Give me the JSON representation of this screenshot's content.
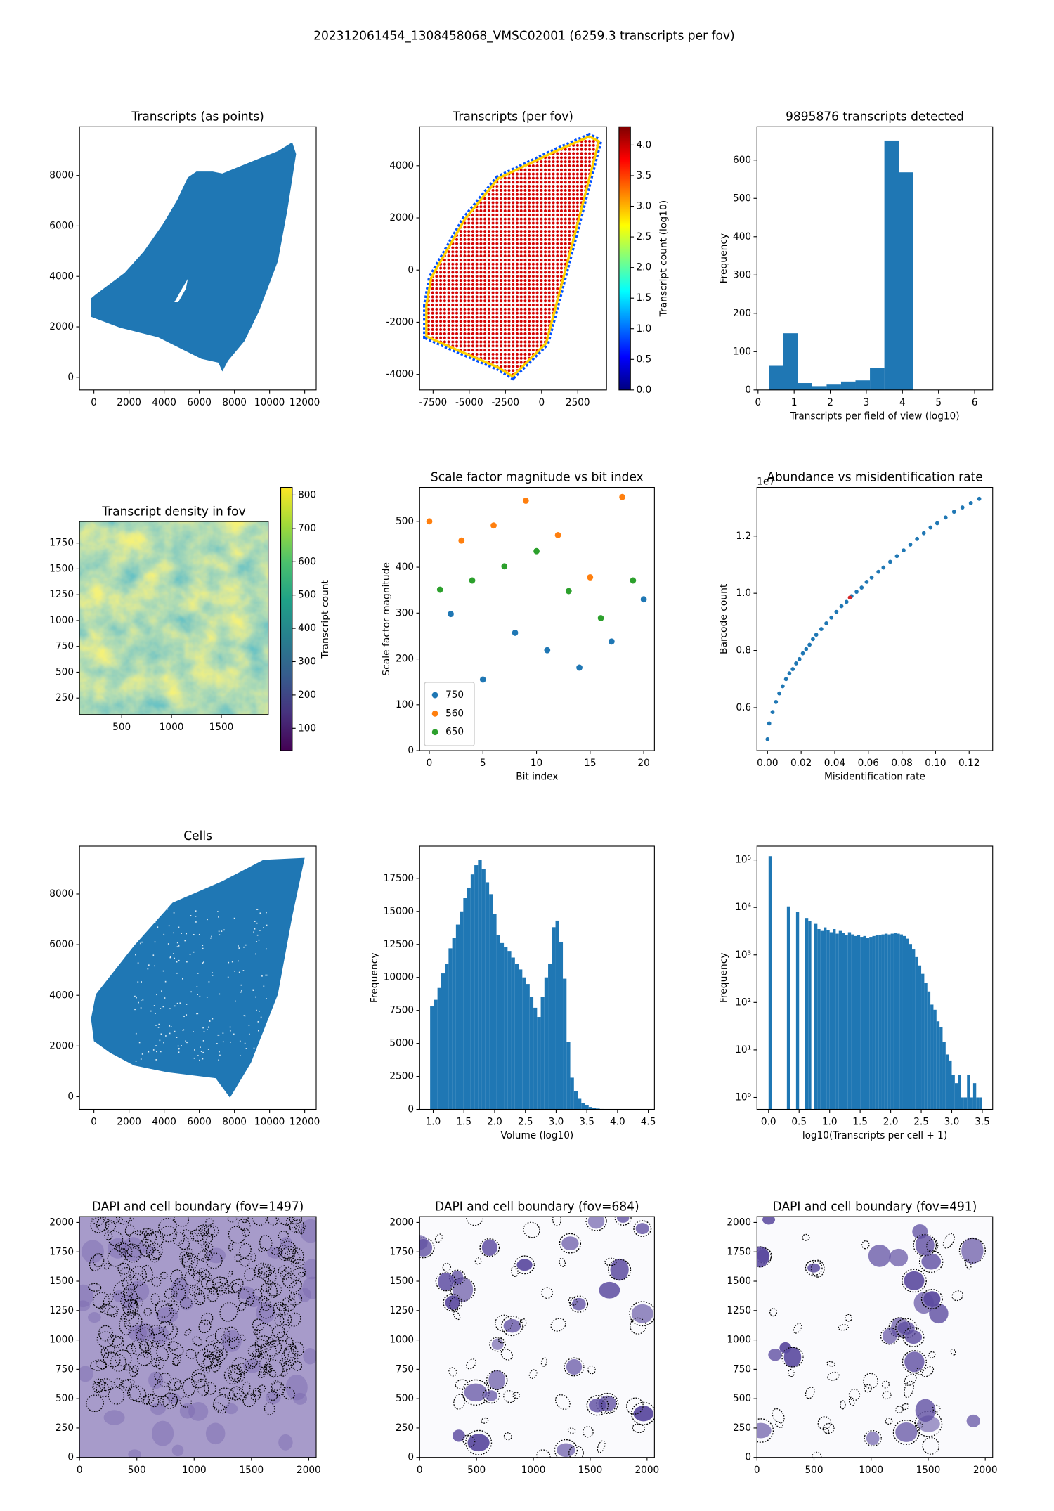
{
  "title": "202312061454_1308458068_VMSC02001 (6259.3 transcripts per fov)",
  "chart_data": [
    {
      "type": "image",
      "title": "Transcripts (as points)",
      "color": "#1f77b4",
      "xlim": [
        -818,
        12655
      ],
      "xticks": [
        0,
        2000,
        4000,
        6000,
        8000,
        10000,
        12000
      ],
      "ylim": [
        -502,
        9932
      ],
      "yticks": [
        0,
        2000,
        4000,
        6000,
        8000
      ]
    },
    {
      "type": "image",
      "title": "Transcripts (per fov)",
      "xlim": [
        -8427,
        4487
      ],
      "xticks": [
        -7500,
        -5000,
        -2500,
        0,
        2500
      ],
      "ylim": [
        -4598,
        5495
      ],
      "yticks": [
        -4000,
        -2000,
        0,
        2000,
        4000
      ],
      "colorbar": {
        "label": "Transcript count (log10)",
        "colormap": "jet",
        "lim": [
          0,
          4.3
        ],
        "ticks": [
          {
            "value": 0,
            "label": "0.0"
          },
          0.5,
          {
            "value": 1,
            "label": "1.0"
          },
          1.5,
          {
            "value": 2,
            "label": "2.0"
          },
          2.5,
          {
            "value": 3,
            "label": "3.0"
          },
          3.5,
          {
            "value": 4,
            "label": "4.0"
          }
        ]
      }
    },
    {
      "type": "hist",
      "title": "9895876 transcripts detected",
      "x_label": "Transcripts per field of view (log10)",
      "y_label": "Frequency",
      "color": "#1f77b4",
      "bins": [
        0.3,
        0.7,
        1.1,
        1.5,
        1.9,
        2.3,
        2.7,
        3.1,
        3.5,
        3.9,
        4.3
      ],
      "counts": [
        63,
        148,
        18,
        10,
        14,
        22,
        25,
        58,
        651,
        568
      ],
      "xlim": [
        -0.03,
        6.5
      ],
      "xticks": [
        0,
        1,
        2,
        3,
        4,
        5,
        6
      ],
      "ylim": [
        0,
        687
      ],
      "yticks": [
        0,
        100,
        200,
        300,
        400,
        500,
        600
      ]
    },
    {
      "type": "image",
      "title": "Transcript density in fov",
      "xlim": [
        77,
        1971
      ],
      "xticks": [
        500,
        1000,
        1500
      ],
      "ylim": [
        90,
        1958
      ],
      "yticks": [
        250,
        500,
        750,
        1000,
        1250,
        1500,
        1750
      ],
      "colorbar": {
        "label": "Transcript count",
        "colormap": "viridis",
        "lim": [
          33,
          823
        ],
        "ticks": [
          100,
          200,
          300,
          400,
          500,
          600,
          700,
          800
        ]
      }
    },
    {
      "type": "scatter",
      "title": "Scale factor magnitude vs bit index",
      "x_label": "Bit index",
      "y_label": "Scale factor magnitude",
      "legend": "lower left",
      "xlim": [
        -0.9,
        21
      ],
      "xticks": [
        0,
        5,
        10,
        15,
        20
      ],
      "ylim": [
        0,
        574
      ],
      "yticks": [
        0,
        100,
        200,
        300,
        400,
        500
      ],
      "series": [
        {
          "name": "750",
          "color": "#1f77b4",
          "x": [
            2,
            5,
            8,
            11,
            14,
            17,
            20
          ],
          "values": [
            298,
            155,
            257,
            219,
            181,
            238,
            330
          ]
        },
        {
          "name": "560",
          "color": "#ff7f0e",
          "x": [
            0,
            3,
            6,
            9,
            12,
            15,
            18
          ],
          "values": [
            500,
            458,
            491,
            545,
            470,
            378,
            553
          ]
        },
        {
          "name": "650",
          "color": "#2ca02c",
          "x": [
            1,
            4,
            7,
            10,
            13,
            16,
            19
          ],
          "values": [
            351,
            371,
            402,
            435,
            348,
            289,
            371
          ]
        }
      ]
    },
    {
      "type": "scatter",
      "title": "Abundance vs misidentification rate",
      "x_label": "Misidentification rate",
      "y_label": "Barcode count",
      "offset_label": "1e7",
      "xlim": [
        -0.0063,
        0.134
      ],
      "xticks": [
        {
          "value": 0,
          "label": "0.00"
        },
        0.02,
        0.04,
        0.06,
        0.08,
        {
          "value": 0.1,
          "label": "0.10"
        },
        0.12
      ],
      "ylim": [
        0.45,
        1.37
      ],
      "yticks": [
        0.6,
        0.8,
        {
          "value": 1,
          "label": "1.0"
        },
        1.2
      ],
      "series": [
        {
          "color": "#1f77b4",
          "x": [
            0,
            0.001,
            0.003,
            0.005,
            0.007,
            0.009,
            0.011,
            0.013,
            0.015,
            0.017,
            0.019,
            0.021,
            0.023,
            0.025,
            0.027,
            0.029,
            0.032,
            0.035,
            0.038,
            0.041,
            0.044,
            0.047,
            0.05,
            0.053,
            0.056,
            0.059,
            0.062,
            0.066,
            0.069,
            0.073,
            0.077,
            0.081,
            0.085,
            0.089,
            0.093,
            0.097,
            0.101,
            0.106,
            0.111,
            0.116,
            0.121,
            0.126
          ],
          "values": [
            0.49,
            0.545,
            0.585,
            0.62,
            0.65,
            0.675,
            0.7,
            0.72,
            0.735,
            0.755,
            0.77,
            0.79,
            0.805,
            0.82,
            0.84,
            0.855,
            0.875,
            0.895,
            0.915,
            0.935,
            0.955,
            0.97,
            0.99,
            1.005,
            1.02,
            1.04,
            1.055,
            1.075,
            1.09,
            1.11,
            1.13,
            1.15,
            1.17,
            1.19,
            1.21,
            1.23,
            1.245,
            1.265,
            1.285,
            1.3,
            1.315,
            1.33
          ]
        },
        {
          "color": "#d62728",
          "x": [
            0.049
          ],
          "values": [
            0.985
          ]
        }
      ]
    },
    {
      "type": "image",
      "title": "Cells",
      "color": "#1f77b4",
      "xlim": [
        -818,
        12655
      ],
      "xticks": [
        0,
        2000,
        4000,
        6000,
        8000,
        10000,
        12000
      ],
      "ylim": [
        -500,
        9885
      ],
      "yticks": [
        0,
        2000,
        4000,
        6000,
        8000
      ]
    },
    {
      "type": "hist",
      "x_label": "Volume (log10)",
      "y_label": "Frequency",
      "color": "#1f77b4",
      "bins": [
        0.95,
        1.01,
        1.07,
        1.13,
        1.19,
        1.25,
        1.31,
        1.37,
        1.43,
        1.49,
        1.55,
        1.61,
        1.67,
        1.73,
        1.79,
        1.85,
        1.91,
        1.97,
        2.03,
        2.09,
        2.15,
        2.21,
        2.27,
        2.33,
        2.39,
        2.45,
        2.51,
        2.57,
        2.63,
        2.69,
        2.75,
        2.81,
        2.87,
        2.93,
        2.99,
        3.05,
        3.11,
        3.17,
        3.23,
        3.29,
        3.35,
        3.41,
        3.47,
        3.53,
        3.59,
        3.65,
        3.71,
        3.77,
        3.83,
        3.89,
        3.95,
        4.01,
        4.07,
        4.13,
        4.19,
        4.25,
        4.31
      ],
      "counts": [
        7800,
        8300,
        9200,
        10300,
        11000,
        12200,
        13000,
        14000,
        15000,
        16000,
        16800,
        17800,
        18500,
        18900,
        18200,
        17200,
        16300,
        14800,
        13200,
        12600,
        12300,
        12000,
        11500,
        11000,
        10600,
        10000,
        9500,
        8500,
        7700,
        7000,
        8500,
        10000,
        11000,
        13800,
        14300,
        12700,
        9900,
        5100,
        2400,
        1400,
        800,
        500,
        300,
        180,
        100,
        60,
        30,
        15,
        8,
        5,
        3,
        2,
        1,
        1,
        0,
        1
      ],
      "xlim": [
        0.78,
        4.6
      ],
      "xticks": [
        {
          "value": 1,
          "label": "1.0"
        },
        1.5,
        {
          "value": 2,
          "label": "2.0"
        },
        2.5,
        {
          "value": 3,
          "label": "3.0"
        },
        3.5,
        {
          "value": 4,
          "label": "4.0"
        },
        4.5
      ],
      "ylim": [
        0,
        19940
      ],
      "yticks": [
        0,
        2500,
        5000,
        7500,
        10000,
        12500,
        15000,
        17500
      ]
    },
    {
      "type": "hist",
      "x_label": "log10(Transcripts per cell + 1)",
      "y_label": "Frequency",
      "color": "#1f77b4",
      "yscale": "log",
      "bins": [
        0,
        0.05,
        0.1,
        0.15,
        0.2,
        0.25,
        0.3,
        0.35,
        0.4,
        0.45,
        0.5,
        0.55,
        0.6,
        0.65,
        0.7,
        0.75,
        0.8,
        0.85,
        0.9,
        0.95,
        1,
        1.05,
        1.1,
        1.15,
        1.2,
        1.25,
        1.3,
        1.35,
        1.4,
        1.45,
        1.5,
        1.55,
        1.6,
        1.65,
        1.7,
        1.75,
        1.8,
        1.85,
        1.9,
        1.95,
        2,
        2.05,
        2.1,
        2.15,
        2.2,
        2.25,
        2.3,
        2.35,
        2.4,
        2.45,
        2.5,
        2.55,
        2.6,
        2.65,
        2.7,
        2.75,
        2.8,
        2.85,
        2.9,
        2.95,
        3,
        3.05,
        3.1,
        3.15,
        3.2,
        3.25,
        3.3,
        3.35,
        3.4,
        3.45,
        3.5
      ],
      "counts": [
        120000,
        0,
        0,
        0,
        0,
        0,
        10500,
        0,
        0,
        8000,
        0,
        0,
        6000,
        5200,
        0,
        4500,
        3500,
        3200,
        3800,
        3300,
        3000,
        3500,
        2800,
        3200,
        2900,
        2600,
        3000,
        2700,
        2500,
        2600,
        2400,
        2500,
        2300,
        2400,
        2500,
        2600,
        2600,
        2700,
        2800,
        2700,
        2800,
        2900,
        2800,
        2700,
        2500,
        2200,
        1700,
        1300,
        900,
        600,
        400,
        260,
        170,
        90,
        70,
        40,
        30,
        15,
        8,
        6,
        3,
        2,
        3,
        1,
        1,
        3,
        1,
        2,
        1,
        1
      ],
      "xlim": [
        -0.19,
        3.67
      ],
      "xticks": [
        {
          "value": 0,
          "label": "0.0"
        },
        0.5,
        {
          "value": 1,
          "label": "1.0"
        },
        1.5,
        {
          "value": 2,
          "label": "2.0"
        },
        2.5,
        {
          "value": 3,
          "label": "3.0"
        },
        3.5
      ],
      "ylim": [
        0.56,
        195000
      ],
      "yticks": [
        {
          "value": 1,
          "label": "10⁰"
        },
        {
          "value": 10,
          "label": "10¹"
        },
        {
          "value": 100,
          "label": "10²"
        },
        {
          "value": 1000,
          "label": "10³"
        },
        {
          "value": 10000,
          "label": "10⁴"
        },
        {
          "value": 100000,
          "label": "10⁵"
        }
      ]
    },
    {
      "type": "image",
      "title": "DAPI and cell boundary (fov=1497)",
      "xlim": [
        0,
        2065
      ],
      "xticks": [
        0,
        500,
        1000,
        1500,
        2000
      ],
      "ylim": [
        0,
        2050
      ],
      "yticks": [
        0,
        250,
        500,
        750,
        1000,
        1250,
        1500,
        1750,
        2000
      ]
    },
    {
      "type": "image",
      "title": "DAPI and cell boundary (fov=684)",
      "xlim": [
        0,
        2065
      ],
      "xticks": [
        0,
        500,
        1000,
        1500,
        2000
      ],
      "ylim": [
        0,
        2050
      ],
      "yticks": [
        0,
        250,
        500,
        750,
        1000,
        1250,
        1500,
        1750,
        2000
      ]
    },
    {
      "type": "image",
      "title": "DAPI and cell boundary (fov=491)",
      "xlim": [
        0,
        2065
      ],
      "xticks": [
        0,
        500,
        1000,
        1500,
        2000
      ],
      "ylim": [
        0,
        2050
      ],
      "yticks": [
        0,
        250,
        500,
        750,
        1000,
        1250,
        1500,
        1750,
        2000
      ]
    }
  ]
}
